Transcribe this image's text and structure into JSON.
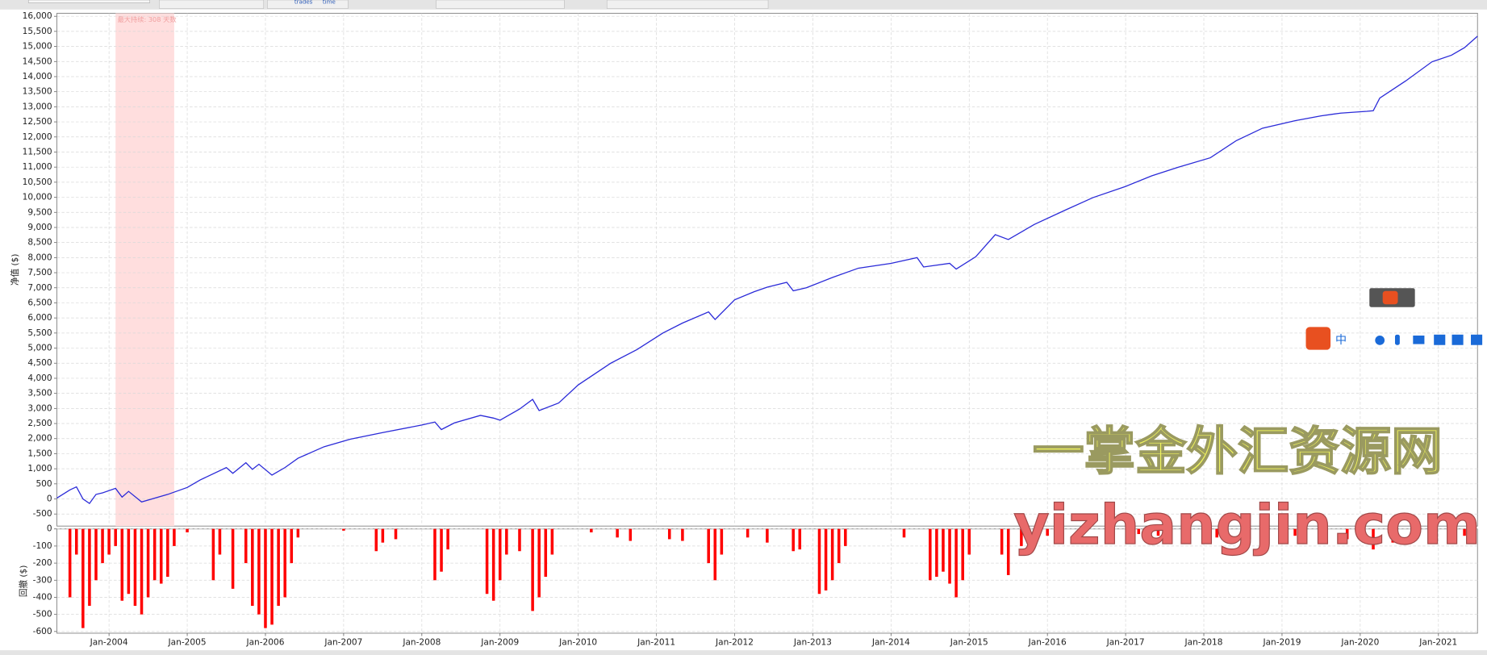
{
  "toolbar": {
    "labels": [
      "trades",
      "time"
    ]
  },
  "watermark": {
    "title": "一掌金外汇资源网",
    "url": "yizhangjin.com"
  },
  "ime": {
    "label": "中"
  },
  "chart_data": [
    {
      "type": "line",
      "y_label": "净值 ($)",
      "color": "#2a2ad8",
      "annotation": "最大持续: 308 天数",
      "highlight_span": [
        "2004-02",
        "2004-11"
      ],
      "highlight_color": "#ffdede",
      "xlim": [
        "2003-05",
        "2021-07"
      ],
      "xticks": [
        "2004-01",
        "2005-01",
        "2006-01",
        "2007-01",
        "2008-01",
        "2009-01",
        "2010-01",
        "2011-01",
        "2012-01",
        "2013-01",
        "2014-01",
        "2015-01",
        "2016-01",
        "2017-01",
        "2018-01",
        "2019-01",
        "2020-01",
        "2021-01"
      ],
      "ylim": [
        -900,
        16100
      ],
      "yticks": [
        -500,
        0,
        500,
        {
          "value": 1000,
          "label": "1,000"
        },
        {
          "value": 1500,
          "label": "1,500"
        },
        {
          "value": 2000,
          "label": "2,000"
        },
        {
          "value": 2500,
          "label": "2,500"
        },
        {
          "value": 3000,
          "label": "3,000"
        },
        {
          "value": 3500,
          "label": "3,500"
        },
        {
          "value": 4000,
          "label": "4,000"
        },
        {
          "value": 4500,
          "label": "4,500"
        },
        {
          "value": 5000,
          "label": "5,000"
        },
        {
          "value": 5500,
          "label": "5,500"
        },
        {
          "value": 6000,
          "label": "6,000"
        },
        {
          "value": 6500,
          "label": "6,500"
        },
        {
          "value": 7000,
          "label": "7,000"
        },
        {
          "value": 7500,
          "label": "7,500"
        },
        {
          "value": 8000,
          "label": "8,000"
        },
        {
          "value": 8500,
          "label": "8,500"
        },
        {
          "value": 9000,
          "label": "9,000"
        },
        {
          "value": 9500,
          "label": "9,500"
        },
        {
          "value": 10000,
          "label": "10,000"
        },
        {
          "value": 10500,
          "label": "10,500"
        },
        {
          "value": 11000,
          "label": "11,000"
        },
        {
          "value": 11500,
          "label": "11,500"
        },
        {
          "value": 12000,
          "label": "12,000"
        },
        {
          "value": 12500,
          "label": "12,500"
        },
        {
          "value": 13000,
          "label": "13,000"
        },
        {
          "value": 13500,
          "label": "13,500"
        },
        {
          "value": 14000,
          "label": "14,000"
        },
        {
          "value": 14500,
          "label": "14,500"
        },
        {
          "value": 15000,
          "label": "15,000"
        },
        {
          "value": 15500,
          "label": "15,500"
        },
        {
          "value": 16000,
          "label": "16,000"
        }
      ],
      "x": [
        "2003-05",
        "2003-07",
        "2003-08",
        "2003-09",
        "2003-10",
        "2003-11",
        "2003-12",
        "2004-02",
        "2004-03",
        "2004-04",
        "2004-06",
        "2004-10",
        "2005-01",
        "2005-03",
        "2005-07",
        "2005-08",
        "2005-10",
        "2005-11",
        "2005-12",
        "2006-02",
        "2006-04",
        "2006-06",
        "2006-10",
        "2007-02",
        "2007-07",
        "2008-01",
        "2008-03",
        "2008-04",
        "2008-06",
        "2008-10",
        "2008-12",
        "2009-01",
        "2009-04",
        "2009-06",
        "2009-07",
        "2009-10",
        "2010-01",
        "2010-06",
        "2010-10",
        "2011-02",
        "2011-05",
        "2011-09",
        "2011-10",
        "2012-01",
        "2012-04",
        "2012-06",
        "2012-09",
        "2012-10",
        "2012-12",
        "2013-04",
        "2013-08",
        "2014-01",
        "2014-05",
        "2014-06",
        "2014-10",
        "2014-11",
        "2015-02",
        "2015-05",
        "2015-07",
        "2015-11",
        "2016-04",
        "2016-08",
        "2017-01",
        "2017-05",
        "2017-09",
        "2018-02",
        "2018-06",
        "2018-10",
        "2019-03",
        "2019-07",
        "2019-10",
        "2020-02",
        "2020-03",
        "2020-04",
        "2020-08",
        "2020-12",
        "2021-03",
        "2021-05",
        "2021-07"
      ],
      "values": [
        30,
        300,
        400,
        0,
        -150,
        150,
        200,
        350,
        60,
        250,
        -100,
        150,
        380,
        630,
        1040,
        850,
        1200,
        980,
        1150,
        790,
        1040,
        1350,
        1730,
        1980,
        2200,
        2450,
        2550,
        2300,
        2520,
        2770,
        2680,
        2610,
        2980,
        3300,
        2930,
        3180,
        3780,
        4500,
        4950,
        5500,
        5830,
        6200,
        5950,
        6600,
        6870,
        7020,
        7180,
        6900,
        7000,
        7340,
        7650,
        7810,
        8000,
        7690,
        7810,
        7620,
        8030,
        8760,
        8600,
        9100,
        9600,
        9990,
        10360,
        10710,
        10990,
        11310,
        11880,
        12290,
        12540,
        12700,
        12790,
        12850,
        12870,
        13290,
        13860,
        14490,
        14710,
        14960,
        15340
      ]
    },
    {
      "type": "bar",
      "y_label": "回撤 ($)",
      "color": "#ff0000",
      "xlim": [
        "2003-05",
        "2021-07"
      ],
      "xticks": [
        {
          "value": "2004-01",
          "label": "Jan-2004"
        },
        {
          "value": "2005-01",
          "label": "Jan-2005"
        },
        {
          "value": "2006-01",
          "label": "Jan-2006"
        },
        {
          "value": "2007-01",
          "label": "Jan-2007"
        },
        {
          "value": "2008-01",
          "label": "Jan-2008"
        },
        {
          "value": "2009-01",
          "label": "Jan-2009"
        },
        {
          "value": "2010-01",
          "label": "Jan-2010"
        },
        {
          "value": "2011-01",
          "label": "Jan-2011"
        },
        {
          "value": "2012-01",
          "label": "Jan-2012"
        },
        {
          "value": "2013-01",
          "label": "Jan-2013"
        },
        {
          "value": "2014-01",
          "label": "Jan-2014"
        },
        {
          "value": "2015-01",
          "label": "Jan-2015"
        },
        {
          "value": "2016-01",
          "label": "Jan-2016"
        },
        {
          "value": "2017-01",
          "label": "Jan-2017"
        },
        {
          "value": "2018-01",
          "label": "Jan-2018"
        },
        {
          "value": "2019-01",
          "label": "Jan-2019"
        },
        {
          "value": "2020-01",
          "label": "Jan-2020"
        },
        {
          "value": "2021-01",
          "label": "Jan-2021"
        }
      ],
      "ylim": [
        -610,
        0
      ],
      "yticks": [
        0,
        -100,
        -200,
        -300,
        -400,
        -500,
        -600
      ],
      "x": [
        "2003-07",
        "2003-08",
        "2003-09",
        "2003-10",
        "2003-11",
        "2003-12",
        "2004-01",
        "2004-02",
        "2004-03",
        "2004-04",
        "2004-05",
        "2004-06",
        "2004-07",
        "2004-08",
        "2004-09",
        "2004-10",
        "2004-11",
        "2005-01",
        "2005-05",
        "2005-06",
        "2005-08",
        "2005-10",
        "2005-11",
        "2005-12",
        "2006-01",
        "2006-02",
        "2006-03",
        "2006-04",
        "2006-05",
        "2006-06",
        "2007-01",
        "2007-06",
        "2007-07",
        "2007-09",
        "2008-03",
        "2008-04",
        "2008-05",
        "2008-11",
        "2008-12",
        "2009-01",
        "2009-02",
        "2009-04",
        "2009-06",
        "2009-07",
        "2009-08",
        "2009-09",
        "2010-03",
        "2010-07",
        "2010-09",
        "2011-03",
        "2011-05",
        "2011-09",
        "2011-10",
        "2011-11",
        "2012-03",
        "2012-06",
        "2012-10",
        "2012-11",
        "2013-02",
        "2013-03",
        "2013-04",
        "2013-05",
        "2013-06",
        "2014-03",
        "2014-07",
        "2014-08",
        "2014-09",
        "2014-10",
        "2014-11",
        "2014-12",
        "2015-01",
        "2015-06",
        "2015-07",
        "2015-09",
        "2016-01",
        "2016-06",
        "2017-03",
        "2017-06",
        "2018-03",
        "2018-08",
        "2019-03",
        "2019-07",
        "2019-11",
        "2020-03",
        "2020-06",
        "2020-12",
        "2021-05"
      ],
      "values": [
        -400,
        -150,
        -580,
        -450,
        -300,
        -200,
        -150,
        -100,
        -420,
        -380,
        -450,
        -500,
        -400,
        -300,
        -320,
        -280,
        -100,
        -20,
        -300,
        -150,
        -350,
        -200,
        -450,
        -500,
        -580,
        -560,
        -450,
        -400,
        -200,
        -50,
        -10,
        -130,
        -80,
        -60,
        -300,
        -250,
        -120,
        -380,
        -420,
        -300,
        -150,
        -130,
        -480,
        -400,
        -280,
        -150,
        -20,
        -50,
        -70,
        -60,
        -70,
        -200,
        -300,
        -150,
        -50,
        -80,
        -130,
        -120,
        -380,
        -360,
        -300,
        -200,
        -100,
        -50,
        -300,
        -280,
        -250,
        -320,
        -400,
        -300,
        -150,
        -150,
        -270,
        -100,
        -40,
        -60,
        -30,
        -40,
        -50,
        -60,
        -40,
        -50,
        -60,
        -120,
        -80,
        -50,
        -40
      ]
    }
  ]
}
